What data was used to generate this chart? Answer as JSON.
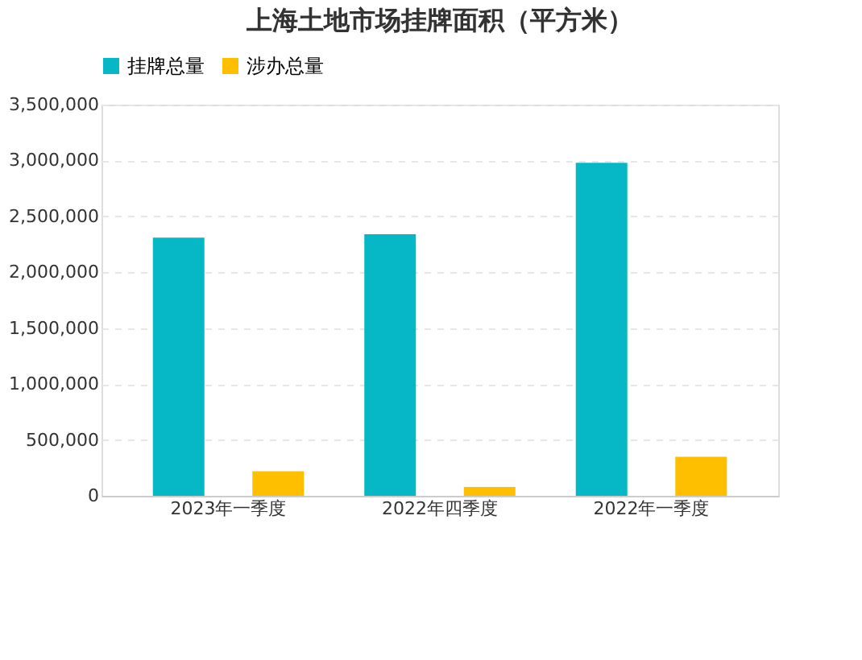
{
  "chart_data": {
    "type": "bar",
    "title": "上海土地市场挂牌面积（平方米）",
    "categories": [
      "2023年一季度",
      "2022年四季度",
      "2022年一季度"
    ],
    "series": [
      {
        "name": "挂牌总量",
        "color": "#06b8c6",
        "values": [
          2310000,
          2340000,
          2980000
        ]
      },
      {
        "name": "涉办总量",
        "color": "#fdbf00",
        "values": [
          220000,
          80000,
          350000
        ]
      }
    ],
    "ylim": [
      0,
      3500000
    ],
    "yticks": [
      {
        "value": 0,
        "label": "0"
      },
      {
        "value": 500000,
        "label": "500,000"
      },
      {
        "value": 1000000,
        "label": "1,000,000"
      },
      {
        "value": 1500000,
        "label": "1,500,000"
      },
      {
        "value": 2000000,
        "label": "2,000,000"
      },
      {
        "value": 2500000,
        "label": "2,500,000"
      },
      {
        "value": 3000000,
        "label": "3,000,000"
      },
      {
        "value": 3500000,
        "label": "3,500,000"
      }
    ],
    "grid": "y",
    "legend": "top"
  }
}
